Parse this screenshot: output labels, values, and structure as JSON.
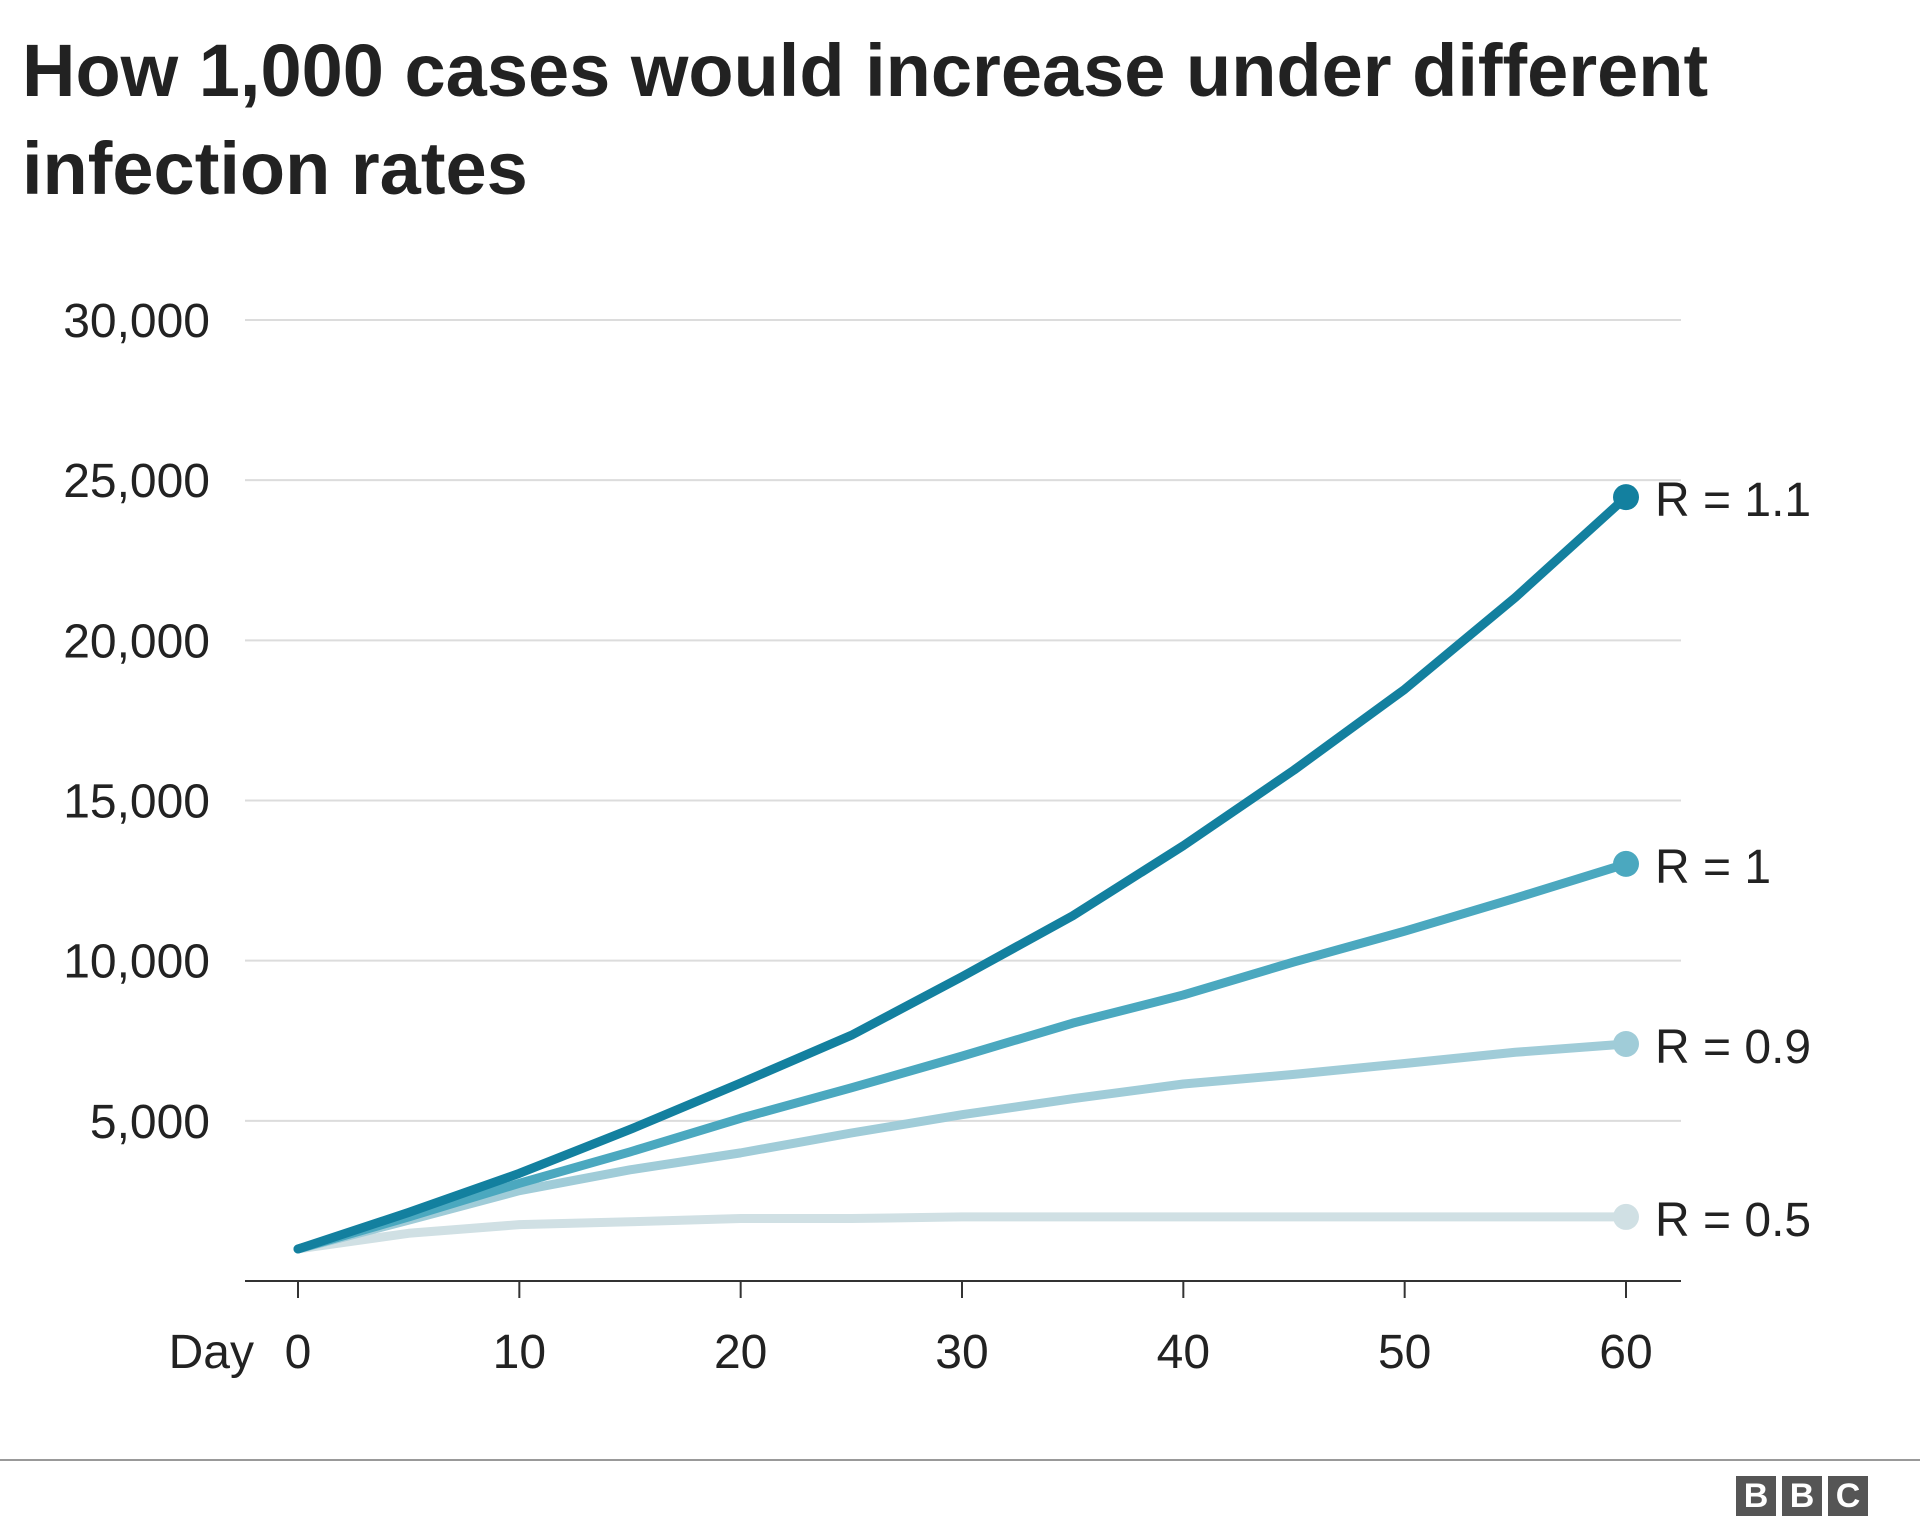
{
  "title": "How 1,000 cases would increase under different infection rates",
  "logo": [
    "B",
    "B",
    "C"
  ],
  "chart_data": {
    "type": "line",
    "title": "How 1,000 cases would increase under different infection rates",
    "xlabel": "Day",
    "ylabel": "",
    "xlim": [
      0,
      60
    ],
    "ylim": [
      0,
      30000
    ],
    "x_ticks": [
      0,
      10,
      20,
      30,
      40,
      50,
      60
    ],
    "x_tick_labels": [
      "0",
      "10",
      "20",
      "30",
      "40",
      "50",
      "60"
    ],
    "y_ticks": [
      5000,
      10000,
      15000,
      20000,
      25000,
      30000
    ],
    "y_tick_labels": [
      "5,000",
      "10,000",
      "15,000",
      "20,000",
      "25,000",
      "30,000"
    ],
    "grid": "horizontal",
    "legend": "end-of-line labels",
    "x": [
      0,
      5,
      10,
      15,
      20,
      25,
      30,
      35,
      40,
      45,
      50,
      55,
      60
    ],
    "series": [
      {
        "name": "R = 1.1",
        "color": "#13809f",
        "values": [
          1000,
          2140,
          3360,
          4730,
          6180,
          7670,
          9500,
          11400,
          13590,
          15950,
          18470,
          21340,
          24470
        ]
      },
      {
        "name": "R = 1",
        "color": "#4ba8bf",
        "values": [
          1000,
          2000,
          3050,
          4030,
          5080,
          6030,
          7020,
          8050,
          8930,
          9960,
          10920,
          11950,
          13020
        ]
      },
      {
        "name": "R = 0.9",
        "color": "#a0ccd8",
        "values": [
          1000,
          1900,
          2820,
          3470,
          4000,
          4620,
          5190,
          5690,
          6150,
          6450,
          6790,
          7140,
          7400
        ]
      },
      {
        "name": "R = 0.5",
        "color": "#d0e0e4",
        "values": [
          1000,
          1490,
          1760,
          1850,
          1950,
          1950,
          2000,
          2000,
          2000,
          2000,
          2000,
          2000,
          2000
        ]
      }
    ]
  }
}
